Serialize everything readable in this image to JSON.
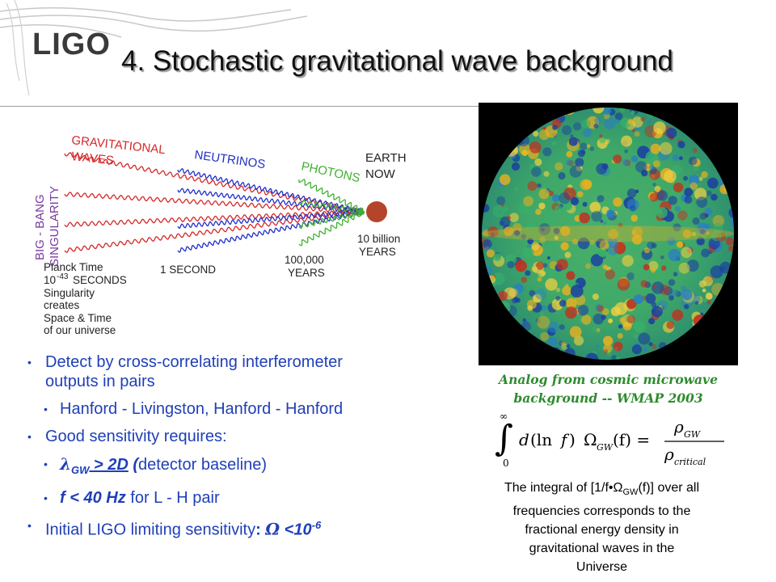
{
  "header": {
    "logo_text": "LIGO",
    "title": "4. Stochastic gravitational wave background"
  },
  "diagram": {
    "labels": {
      "gravitational": "GRAVITATIONAL",
      "waves": "WAVES",
      "neutrinos": "NEUTRINOS",
      "photons": "PHOTONS",
      "earth": "EARTH",
      "now": "NOW",
      "big_bang": "BIG - BANG",
      "singularity": "SINGULARITY",
      "planck_lines": [
        "Planck Time",
        "10",
        "-43",
        "SECONDS",
        "Singularity",
        "creates",
        "Space & Time",
        "of our universe"
      ],
      "one_second": "1 SECOND",
      "hundred_thousand": "100,000",
      "years_a": "YEARS",
      "ten_billion": "10 billion",
      "years_b": "YEARS"
    },
    "colors": {
      "gw": "#d62828",
      "neutrino": "#2030c8",
      "photon": "#40b030",
      "earth": "#b5452a",
      "label": "#7a3aa0"
    }
  },
  "bullets": {
    "b1": "Detect by cross-correlating interferometer",
    "b1_cont": "outputs in pairs",
    "b2": "Hanford - Livingston, Hanford - Hanford",
    "b3": "Good sensitivity requires:",
    "b4_lambda": "λ",
    "b4_sub": "GW",
    "b4_rest": " > 2D",
    "b4_paren_open": " (",
    "b4_tail": "detector baseline)",
    "b5_f": "f < 40 Hz",
    "b5_tail": " for L - H pair",
    "b6_text": "Initial LIGO limiting sensitivity",
    "b6_colon": ": ",
    "b6_omega": "Ω",
    "b6_less": " <",
    "b6_value": "10",
    "b6_exp": "-6"
  },
  "figure": {
    "caption_line1": "Analog from cosmic microwave",
    "caption_line2": "background -- WMAP 2003",
    "colors": {
      "background": "#000000",
      "hot": "#e8b020",
      "mid": "#38b06a",
      "cool": "#1a3fa0"
    }
  },
  "formula": {
    "int_upper": "∞",
    "int_lower": "0",
    "d": "d",
    "ln": "(ln",
    "f": "f",
    "close": ")",
    "omega": "Ω",
    "omega_sub": "GW",
    "arg": "(f) =",
    "rho": "ρ",
    "num_sub": "GW",
    "den_sub": "critical"
  },
  "integral_text": {
    "line1": "The integral of [1/f•Ω",
    "line1_sub": "GW",
    "line1_end": "(f)] over all",
    "line2": "frequencies corresponds to the",
    "line3": "fractional energy density in",
    "line4": "gravitational waves in the",
    "line5": "Universe"
  }
}
